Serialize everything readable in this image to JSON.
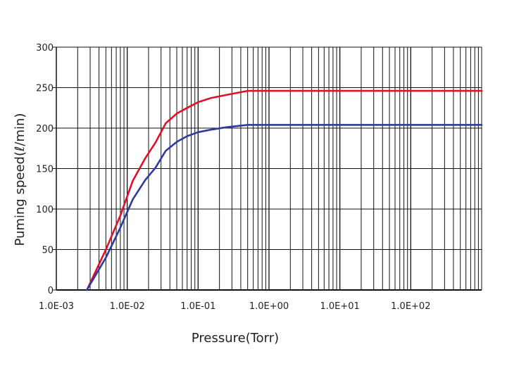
{
  "chart_data": {
    "type": "line",
    "title": "",
    "xlabel": "Pressure(Torr)",
    "ylabel": "Puming speed(ℓ/min)",
    "x_scale": "log",
    "xlim": [
      0.001,
      1000
    ],
    "ylim": [
      0,
      300
    ],
    "grid": true,
    "legend": "none",
    "x_tick_values": [
      0.001,
      0.01,
      0.1,
      1,
      10,
      100
    ],
    "x_tick_labels": [
      "1.0E-03",
      "1.0E-02",
      "1.0E-01",
      "1.0E+00",
      "1.0E+01",
      "1.0E+02"
    ],
    "y_ticks": [
      0,
      50,
      100,
      150,
      200,
      250,
      300
    ],
    "series": [
      {
        "color": "#e0102a",
        "x": [
          0.0027,
          0.005,
          0.008,
          0.012,
          0.018,
          0.025,
          0.035,
          0.05,
          0.07,
          0.1,
          0.15,
          0.25,
          0.5,
          1,
          10,
          100,
          1000
        ],
        "y": [
          0,
          50,
          92,
          135,
          163,
          182,
          206,
          218,
          225,
          232,
          237,
          241,
          246,
          246,
          246,
          246,
          246
        ]
      },
      {
        "color": "#2e3aa0",
        "x": [
          0.0027,
          0.005,
          0.008,
          0.012,
          0.018,
          0.025,
          0.035,
          0.05,
          0.07,
          0.1,
          0.15,
          0.25,
          0.5,
          1,
          10,
          100,
          1000
        ],
        "y": [
          0,
          40,
          77,
          112,
          136,
          151,
          172,
          183,
          190,
          195,
          198,
          201,
          204,
          204,
          204,
          204,
          204
        ]
      }
    ]
  }
}
